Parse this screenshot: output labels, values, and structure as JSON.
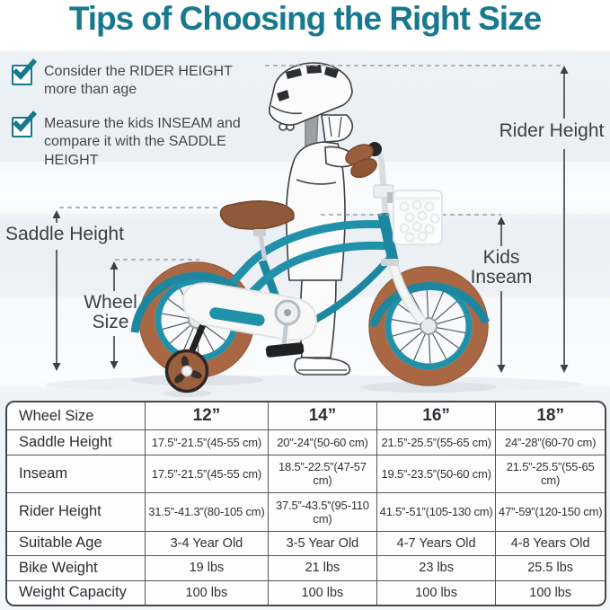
{
  "title": "Tips of Choosing the Right Size",
  "tips": [
    "Consider the RIDER HEIGHT more than age",
    "Measure the kids INSEAM and compare it with the SADDLE HEIGHT"
  ],
  "diagram": {
    "rider_height_label": "Rider Height",
    "saddle_height_label": "Saddle Height",
    "wheel_size_label": "Wheel Size",
    "kids_inseam_label": "Kids Inseam"
  },
  "table": {
    "corner_label": "Wheel Size",
    "sizes": [
      "12”",
      "14”",
      "16”",
      "18”"
    ],
    "rows": [
      {
        "label": "Saddle Height",
        "values": [
          "17.5”-21.5”(45-55 cm)",
          "20”-24”(50-60 cm)",
          "21.5”-25.5”(55-65 cm)",
          "24”-28”(60-70 cm)"
        ]
      },
      {
        "label": "Inseam",
        "values": [
          "17.5”-21.5”(45-55 cm)",
          "18.5”-22.5”(47-57 cm)",
          "19.5”-23.5”(50-60 cm)",
          "21.5”-25.5”(55-65 cm)"
        ]
      },
      {
        "label": "Rider Height",
        "values": [
          "31.5”-41.3”(80-105 cm)",
          "37.5”-43.5”(95-110 cm)",
          "41.5”-51”(105-130 cm)",
          "47”-59”(120-150 cm)"
        ]
      },
      {
        "label": "Suitable Age",
        "values": [
          "3-4 Year Old",
          "3-5 Year Old",
          "4-7 Years Old",
          "4-8 Years Old"
        ]
      },
      {
        "label": "Bike Weight",
        "values": [
          "19 lbs",
          "21 lbs",
          "23 lbs",
          "25.5 lbs"
        ]
      },
      {
        "label": "Weight Capacity",
        "values": [
          "100 lbs",
          "100 lbs",
          "100 lbs",
          "100 lbs"
        ]
      }
    ]
  },
  "colors": {
    "accent_teal": "#17798d",
    "frame_teal": "#2191a9",
    "fender_teal": "#1e87a0",
    "tire_brown": "#a96843",
    "saddle_brown": "#8f5a3a",
    "text_dark": "#3c4043"
  }
}
